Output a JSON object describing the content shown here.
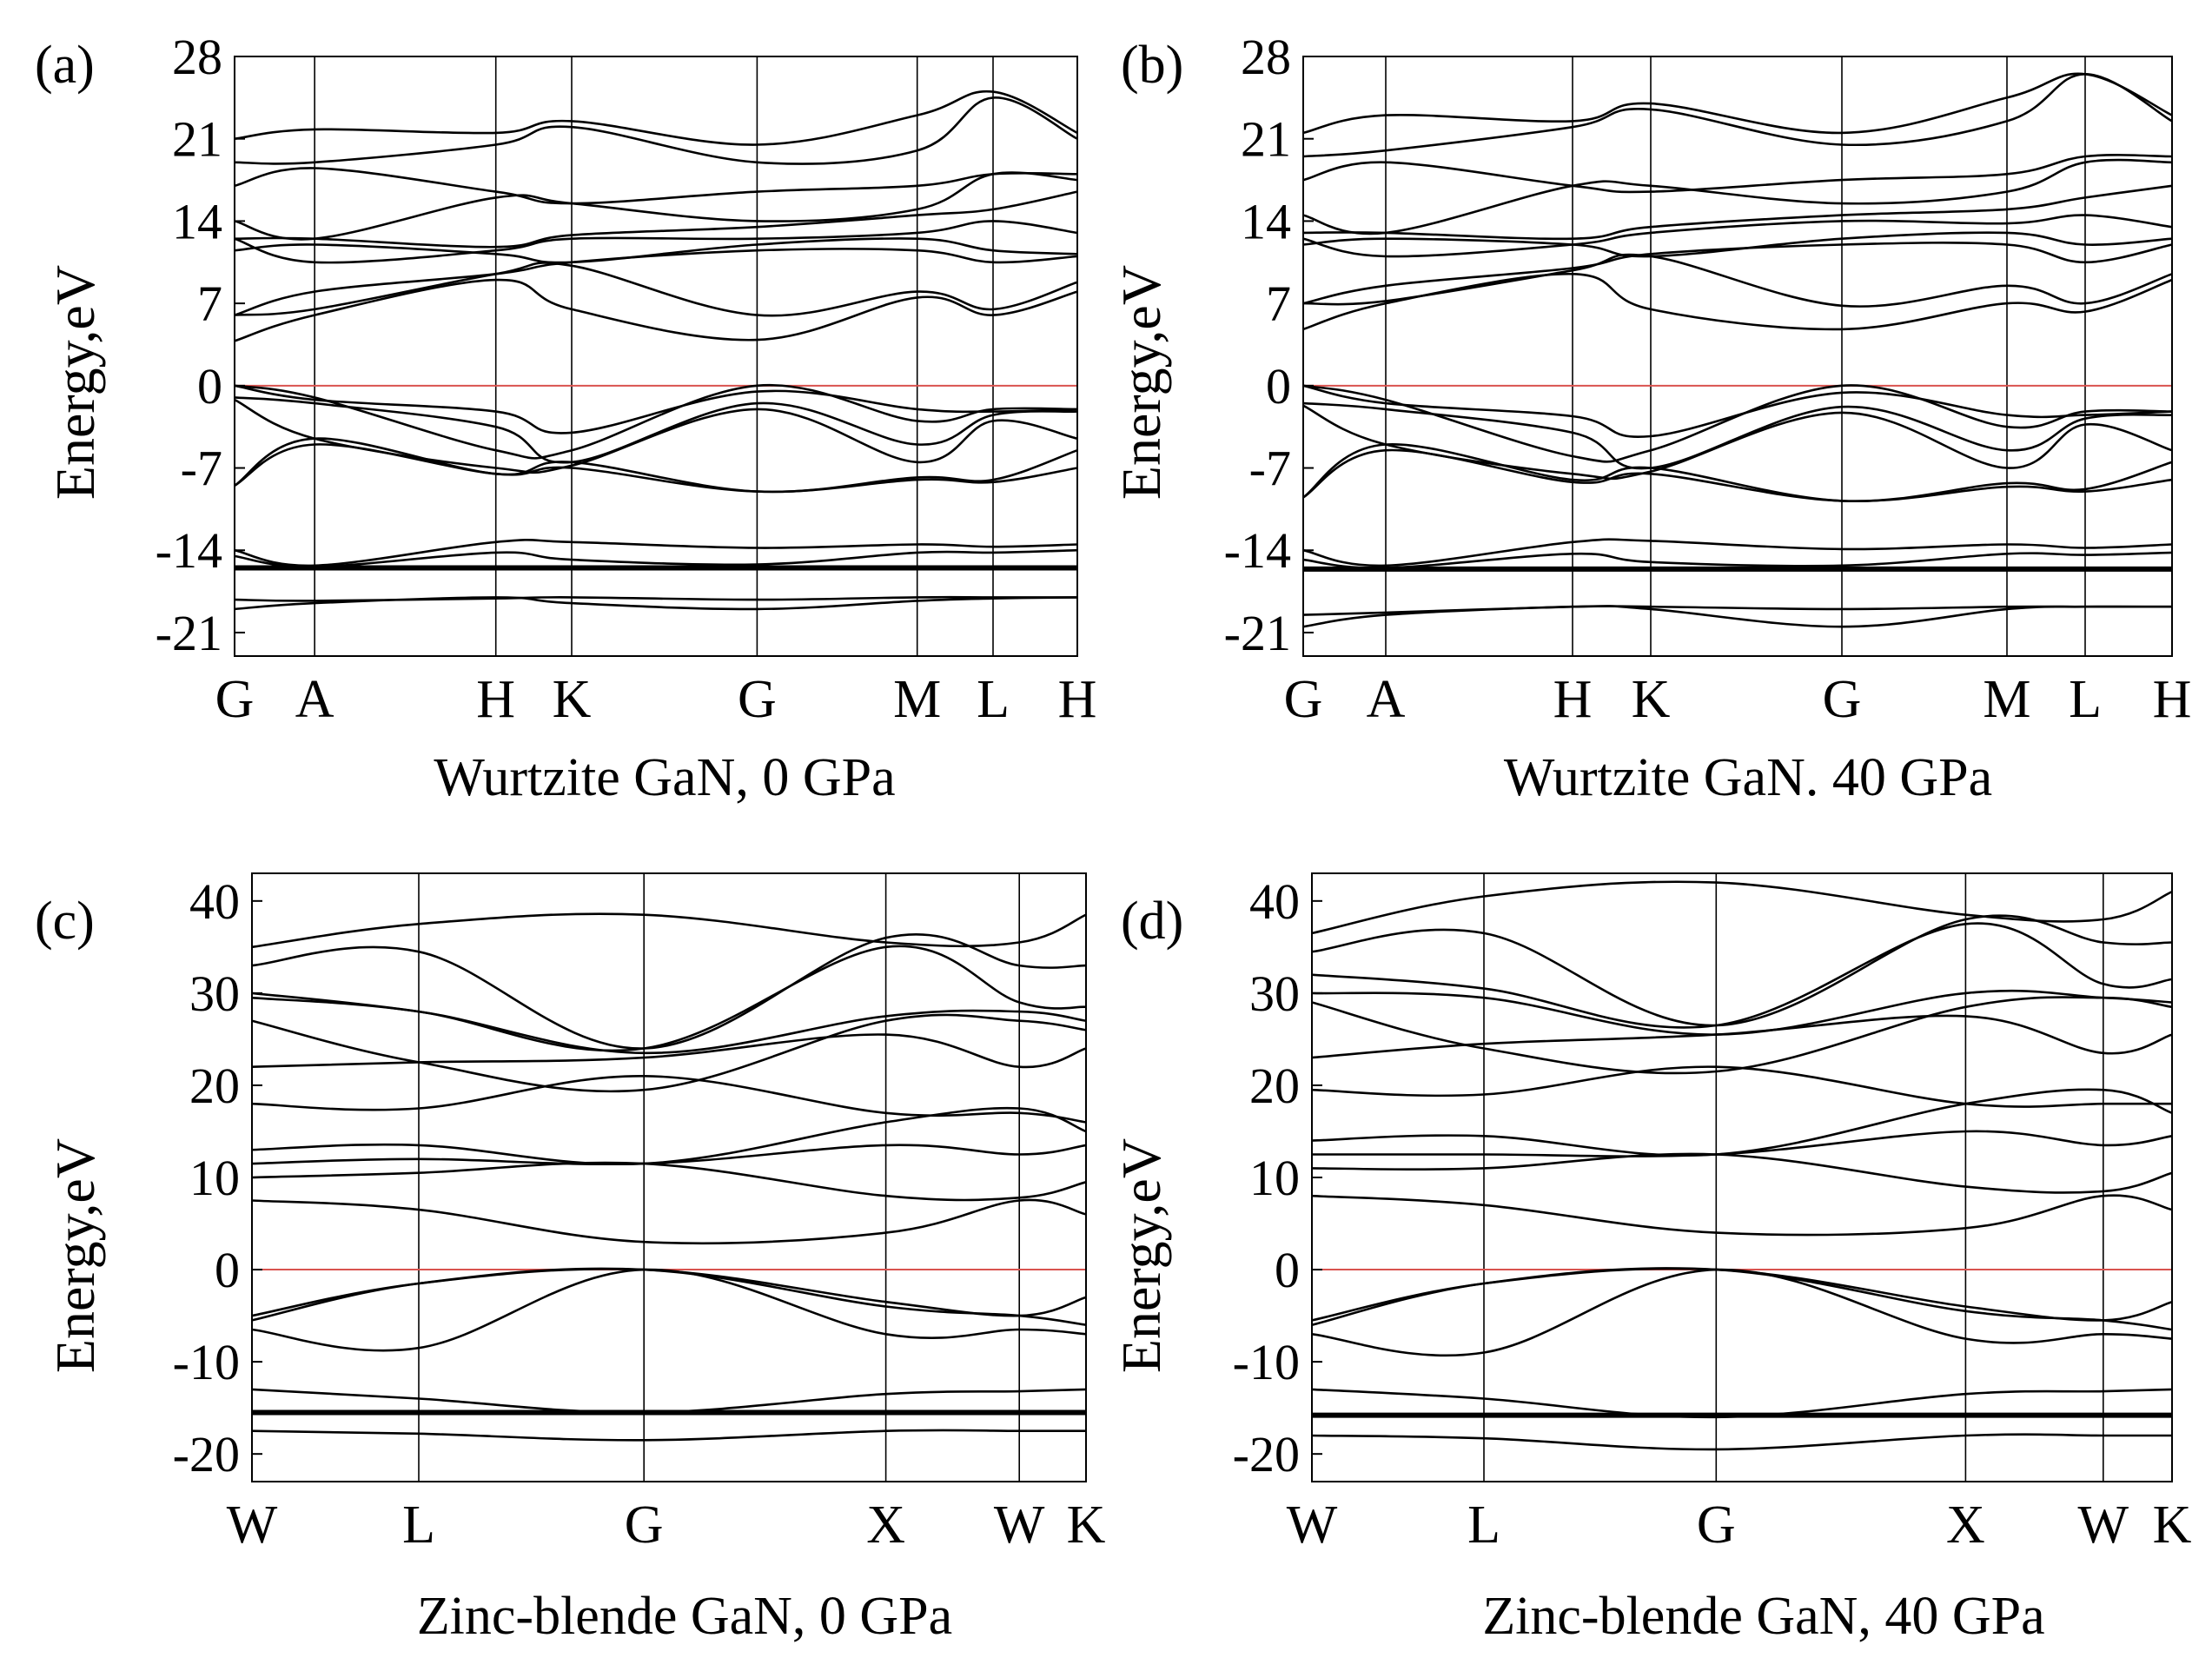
{
  "chart_data": [
    {
      "type": "line",
      "panel_label": "(a)",
      "title": "Wurtzite GaN, 0 GPa",
      "ylabel": "Energy,eV",
      "xlabel": "",
      "ylim": [
        -23,
        28
      ],
      "yticks": [
        28,
        21,
        14,
        7,
        0,
        -7,
        -14,
        -21
      ],
      "ytick_labels": [
        "28",
        "21",
        "14",
        "7",
        "0",
        "-7",
        "-14",
        "-21"
      ],
      "kpath": [
        "G",
        "A",
        "H",
        "K",
        "G",
        "M",
        "L",
        "H"
      ],
      "kpos": [
        0,
        0.095,
        0.31,
        0.4,
        0.62,
        0.81,
        0.9,
        1.0
      ],
      "fermi_level": 0,
      "grid": false,
      "bands": [
        {
          "name": "flat-1",
          "values": [
            -15.5,
            -15.5,
            -15.5,
            -15.5,
            -15.5,
            -15.5,
            -15.5,
            -15.5
          ],
          "heavy": true
        },
        {
          "name": "s-low",
          "values": [
            -19.0,
            -18.5,
            -18.0,
            -18.5,
            -19.0,
            -18.3,
            -18.1,
            -18.0
          ]
        },
        {
          "name": "s-low-2",
          "values": [
            -18.2,
            -18.3,
            -18.1,
            -18.0,
            -18.2,
            -18.0,
            -18.0,
            -18.0
          ]
        },
        {
          "name": "d-upper",
          "values": [
            -14.0,
            -15.3,
            -13.3,
            -13.3,
            -13.8,
            -13.5,
            -13.7,
            -13.5
          ]
        },
        {
          "name": "d-upper-2",
          "values": [
            -14.5,
            -15.4,
            -14.2,
            -14.8,
            -15.2,
            -14.2,
            -14.2,
            -14.0
          ]
        },
        {
          "name": "vb-1",
          "values": [
            0,
            -1.0,
            -5.5,
            -5.5,
            0,
            -3.0,
            -2.0,
            -2.0
          ]
        },
        {
          "name": "vb-2",
          "values": [
            0,
            -1.2,
            -2.2,
            -4.0,
            -0.5,
            -2.0,
            -2.2,
            -2.0
          ]
        },
        {
          "name": "vb-3",
          "values": [
            -1.0,
            -1.5,
            -3.5,
            -6.5,
            -1.5,
            -5.0,
            -2.5,
            -2.2
          ]
        },
        {
          "name": "vb-4",
          "values": [
            -1.2,
            -4.5,
            -7.0,
            -6.8,
            -2.0,
            -6.5,
            -3.0,
            -4.5
          ]
        },
        {
          "name": "vb-5",
          "values": [
            -8.5,
            -4.5,
            -7.5,
            -6.5,
            -9.0,
            -7.8,
            -8.0,
            -5.5
          ]
        },
        {
          "name": "vb-6",
          "values": [
            -8.5,
            -5.0,
            -7.5,
            -7.0,
            -9.0,
            -8.0,
            -8.2,
            -7.0
          ]
        },
        {
          "name": "cb-1",
          "values": [
            3.8,
            6.0,
            9.0,
            6.5,
            3.9,
            7.5,
            6.0,
            8.0
          ]
        },
        {
          "name": "cb-2",
          "values": [
            6.0,
            6.5,
            9.5,
            10.2,
            6.0,
            8.0,
            6.5,
            8.8
          ]
        },
        {
          "name": "cb-3",
          "values": [
            6.0,
            8.0,
            9.5,
            10.5,
            11.5,
            11.5,
            10.5,
            11.0
          ]
        },
        {
          "name": "cb-4",
          "values": [
            11.5,
            12.0,
            11.2,
            10.5,
            12.0,
            12.5,
            11.5,
            11.2
          ]
        },
        {
          "name": "cb-5",
          "values": [
            12.5,
            10.5,
            11.5,
            12.5,
            12.5,
            13.0,
            14.0,
            13.0
          ]
        },
        {
          "name": "cb-6",
          "values": [
            12.5,
            12.5,
            11.8,
            12.8,
            13.5,
            14.5,
            15.0,
            16.5
          ]
        },
        {
          "name": "cb-7",
          "values": [
            14.0,
            12.5,
            16.0,
            15.5,
            14.0,
            15.0,
            18.0,
            17.5
          ]
        },
        {
          "name": "cb-8",
          "values": [
            17.0,
            18.5,
            16.5,
            15.5,
            16.5,
            17.0,
            18.0,
            18.0
          ]
        },
        {
          "name": "cb-9",
          "values": [
            19.0,
            19.0,
            20.5,
            22.0,
            19.0,
            20.0,
            24.5,
            21.0
          ]
        },
        {
          "name": "cb-10",
          "values": [
            21.0,
            21.8,
            21.5,
            22.5,
            20.5,
            23.0,
            25.0,
            21.5
          ]
        }
      ]
    },
    {
      "type": "line",
      "panel_label": "(b)",
      "title": "Wurtzite GaN. 40 GPa",
      "ylabel": "Energy,eV",
      "xlabel": "",
      "ylim": [
        -23,
        28
      ],
      "yticks": [
        28,
        21,
        14,
        7,
        0,
        -7,
        -14,
        -21
      ],
      "ytick_labels": [
        "28",
        "21",
        "14",
        "7",
        "0",
        "-7",
        "-14",
        "-21"
      ],
      "kpath": [
        "G",
        "A",
        "H",
        "K",
        "G",
        "M",
        "L",
        "H"
      ],
      "kpos": [
        0,
        0.095,
        0.31,
        0.4,
        0.62,
        0.81,
        0.9,
        1.0
      ],
      "fermi_level": 0,
      "grid": false,
      "bands": [
        {
          "name": "flat-1",
          "values": [
            -15.6,
            -15.6,
            -15.6,
            -15.6,
            -15.6,
            -15.6,
            -15.6,
            -15.6
          ],
          "heavy": true
        },
        {
          "name": "s-low",
          "values": [
            -20.5,
            -19.5,
            -18.8,
            -19.0,
            -20.5,
            -19.0,
            -18.8,
            -18.8
          ]
        },
        {
          "name": "s-low-2",
          "values": [
            -19.5,
            -19.3,
            -18.8,
            -18.8,
            -19.0,
            -18.8,
            -18.8,
            -18.8
          ]
        },
        {
          "name": "d-upper",
          "values": [
            -14.0,
            -15.3,
            -13.3,
            -13.2,
            -13.9,
            -13.5,
            -13.8,
            -13.5
          ]
        },
        {
          "name": "d-upper-2",
          "values": [
            -14.8,
            -15.5,
            -14.3,
            -15.0,
            -15.3,
            -14.3,
            -14.4,
            -14.2
          ]
        },
        {
          "name": "vb-1",
          "values": [
            0,
            -1.2,
            -6.0,
            -5.5,
            0,
            -3.5,
            -2.2,
            -2.2
          ]
        },
        {
          "name": "vb-2",
          "values": [
            0,
            -1.5,
            -2.6,
            -4.3,
            -0.6,
            -2.5,
            -2.5,
            -2.2
          ]
        },
        {
          "name": "vb-3",
          "values": [
            -1.5,
            -2.0,
            -4.0,
            -7.0,
            -1.8,
            -5.5,
            -2.8,
            -2.5
          ]
        },
        {
          "name": "vb-4",
          "values": [
            -1.7,
            -5.0,
            -7.5,
            -7.3,
            -2.3,
            -7.0,
            -3.3,
            -5.5
          ]
        },
        {
          "name": "vb-5",
          "values": [
            -9.5,
            -5.0,
            -8.0,
            -7.0,
            -9.8,
            -8.3,
            -8.8,
            -6.5
          ]
        },
        {
          "name": "vb-6",
          "values": [
            -9.5,
            -5.5,
            -8.2,
            -7.5,
            -9.8,
            -8.6,
            -9.0,
            -8.0
          ]
        },
        {
          "name": "cb-1",
          "values": [
            4.8,
            7.0,
            9.5,
            6.5,
            4.8,
            7.0,
            6.3,
            9.0
          ]
        },
        {
          "name": "cb-2",
          "values": [
            7.0,
            7.2,
            9.8,
            11.0,
            6.8,
            8.5,
            7.0,
            9.5
          ]
        },
        {
          "name": "cb-3",
          "values": [
            7.0,
            8.5,
            10.0,
            11.2,
            12.0,
            12.0,
            10.5,
            12.0
          ]
        },
        {
          "name": "cb-4",
          "values": [
            12.0,
            12.5,
            12.0,
            11.0,
            12.5,
            13.0,
            12.0,
            12.5
          ]
        },
        {
          "name": "cb-5",
          "values": [
            12.5,
            11.0,
            12.0,
            13.0,
            14.0,
            13.8,
            14.5,
            13.5
          ]
        },
        {
          "name": "cb-6",
          "values": [
            13.0,
            13.0,
            12.5,
            13.5,
            14.5,
            15.0,
            16.0,
            17.0
          ]
        },
        {
          "name": "cb-7",
          "values": [
            14.5,
            13.0,
            17.0,
            17.0,
            15.5,
            16.5,
            19.0,
            19.0
          ]
        },
        {
          "name": "cb-8",
          "values": [
            17.5,
            19.0,
            17.0,
            16.5,
            17.5,
            18.0,
            19.5,
            19.5
          ]
        },
        {
          "name": "cb-9",
          "values": [
            19.5,
            20.0,
            22.0,
            23.5,
            20.5,
            22.5,
            26.5,
            22.5
          ]
        },
        {
          "name": "cb-10",
          "values": [
            21.5,
            23.0,
            22.5,
            24.0,
            21.5,
            24.5,
            26.5,
            23.0
          ]
        }
      ]
    },
    {
      "type": "line",
      "panel_label": "(c)",
      "title": "Zinc-blende GaN, 0 GPa",
      "ylabel": "Energy,eV",
      "xlabel": "",
      "ylim": [
        -23,
        43
      ],
      "yticks": [
        40,
        30,
        20,
        10,
        0,
        -10,
        -20
      ],
      "ytick_labels": [
        "40",
        "30",
        "20",
        "10",
        "0",
        "-10",
        "-20"
      ],
      "kpath": [
        "W",
        "L",
        "G",
        "X",
        "W",
        "K"
      ],
      "kpos": [
        0,
        0.2,
        0.47,
        0.76,
        0.92,
        1.0
      ],
      "fermi_level": 0,
      "grid": false,
      "bands": [
        {
          "name": "flat-1",
          "values": [
            -15.5,
            -15.5,
            -15.5,
            -15.5,
            -15.5,
            -15.5
          ],
          "heavy": true
        },
        {
          "name": "s-low",
          "values": [
            -17.5,
            -17.8,
            -18.5,
            -17.5,
            -17.5,
            -17.5
          ]
        },
        {
          "name": "d-upper",
          "values": [
            -13.0,
            -14.0,
            -15.5,
            -13.5,
            -13.2,
            -13.0
          ]
        },
        {
          "name": "vb-1",
          "values": [
            -5.0,
            -1.5,
            0,
            -3.5,
            -5.0,
            -3.0
          ]
        },
        {
          "name": "vb-2",
          "values": [
            -5.5,
            -1.5,
            0,
            -4.0,
            -5.0,
            -6.0
          ]
        },
        {
          "name": "vb-3",
          "values": [
            -6.5,
            -8.5,
            0,
            -7.0,
            -6.5,
            -7.0
          ]
        },
        {
          "name": "cb-1",
          "values": [
            7.5,
            6.5,
            3.0,
            4.0,
            7.5,
            6.0
          ]
        },
        {
          "name": "cb-2",
          "values": [
            10.0,
            10.5,
            11.5,
            8.0,
            7.8,
            9.5
          ]
        },
        {
          "name": "cb-3",
          "values": [
            11.5,
            12.0,
            11.5,
            13.5,
            12.5,
            13.5
          ]
        },
        {
          "name": "cb-4",
          "values": [
            13.0,
            13.5,
            11.5,
            16.0,
            17.5,
            15.0
          ]
        },
        {
          "name": "cb-5",
          "values": [
            18.0,
            17.5,
            21.0,
            17.0,
            17.0,
            16.0
          ]
        },
        {
          "name": "cb-6",
          "values": [
            22.0,
            22.5,
            23.0,
            25.5,
            22.0,
            24.0
          ]
        },
        {
          "name": "cb-7",
          "values": [
            27.0,
            22.5,
            19.5,
            27.0,
            27.0,
            26.0
          ]
        },
        {
          "name": "cb-8",
          "values": [
            29.5,
            28.0,
            23.5,
            27.5,
            28.0,
            27.0
          ]
        },
        {
          "name": "cb-9",
          "values": [
            30.0,
            28.0,
            24.0,
            35.0,
            29.0,
            28.5
          ]
        },
        {
          "name": "cb-10",
          "values": [
            33.0,
            34.5,
            24.0,
            36.0,
            33.0,
            33.0
          ]
        },
        {
          "name": "cb-11",
          "values": [
            35.0,
            37.5,
            38.5,
            35.5,
            35.5,
            38.5
          ]
        }
      ]
    },
    {
      "type": "line",
      "panel_label": "(d)",
      "title": "Zinc-blende GaN, 40 GPa",
      "ylabel": "Energy,eV",
      "xlabel": "",
      "ylim": [
        -23,
        43
      ],
      "yticks": [
        40,
        30,
        20,
        10,
        0,
        -10,
        -20
      ],
      "ytick_labels": [
        "40",
        "30",
        "20",
        "10",
        "0",
        "-10",
        "-20"
      ],
      "kpath": [
        "W",
        "L",
        "G",
        "X",
        "W",
        "K"
      ],
      "kpos": [
        0,
        0.2,
        0.47,
        0.76,
        0.92,
        1.0
      ],
      "fermi_level": 0,
      "grid": false,
      "bands": [
        {
          "name": "flat-1",
          "values": [
            -15.8,
            -15.8,
            -15.8,
            -15.8,
            -15.8,
            -15.8
          ],
          "heavy": true
        },
        {
          "name": "s-low",
          "values": [
            -18.0,
            -18.3,
            -19.5,
            -18.0,
            -18.0,
            -18.0
          ]
        },
        {
          "name": "d-upper",
          "values": [
            -13.0,
            -14.0,
            -16.0,
            -13.5,
            -13.2,
            -13.0
          ]
        },
        {
          "name": "vb-1",
          "values": [
            -5.5,
            -1.5,
            0,
            -4.0,
            -5.5,
            -3.5
          ]
        },
        {
          "name": "vb-2",
          "values": [
            -6.0,
            -1.5,
            0,
            -4.5,
            -5.5,
            -6.5
          ]
        },
        {
          "name": "vb-3",
          "values": [
            -7.0,
            -9.0,
            0,
            -7.5,
            -7.0,
            -7.5
          ]
        },
        {
          "name": "cb-1",
          "values": [
            8.0,
            7.0,
            4.0,
            4.5,
            8.0,
            6.5
          ]
        },
        {
          "name": "cb-2",
          "values": [
            11.0,
            11.0,
            12.5,
            9.0,
            8.5,
            10.5
          ]
        },
        {
          "name": "cb-3",
          "values": [
            12.5,
            12.5,
            12.5,
            15.0,
            13.5,
            14.5
          ]
        },
        {
          "name": "cb-4",
          "values": [
            14.0,
            14.5,
            12.5,
            18.0,
            19.5,
            17.0
          ]
        },
        {
          "name": "cb-5",
          "values": [
            19.5,
            19.0,
            22.0,
            18.0,
            18.0,
            18.0
          ]
        },
        {
          "name": "cb-6",
          "values": [
            23.0,
            24.5,
            25.5,
            27.5,
            23.5,
            25.5
          ]
        },
        {
          "name": "cb-7",
          "values": [
            29.0,
            24.0,
            21.5,
            28.5,
            29.5,
            28.5
          ]
        },
        {
          "name": "cb-8",
          "values": [
            30.0,
            29.5,
            25.5,
            30.0,
            29.5,
            29.0
          ]
        },
        {
          "name": "cb-9",
          "values": [
            32.0,
            30.5,
            26.5,
            37.5,
            31.0,
            31.5
          ]
        },
        {
          "name": "cb-10",
          "values": [
            34.5,
            36.5,
            26.5,
            38.0,
            35.5,
            35.5
          ]
        },
        {
          "name": "cb-11",
          "values": [
            36.5,
            40.5,
            42.0,
            38.5,
            38.0,
            41.0
          ]
        }
      ]
    }
  ],
  "colors": {
    "axis": "#000000",
    "band": "#000000",
    "fermi": "#d9534f"
  }
}
